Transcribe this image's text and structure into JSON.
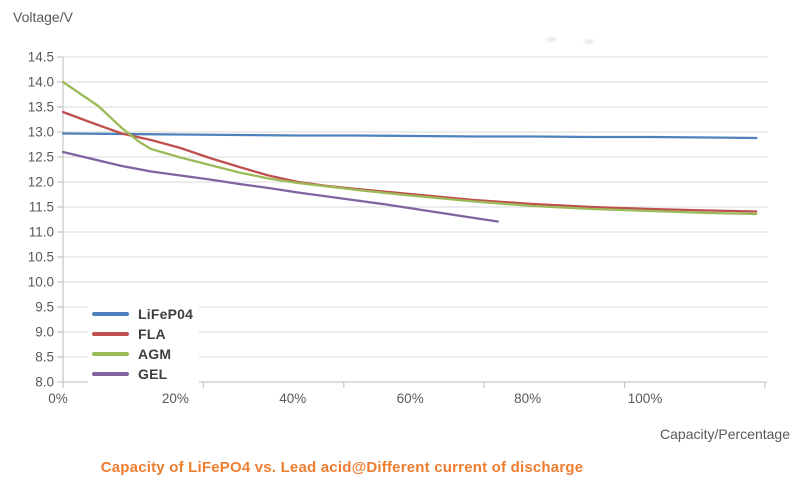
{
  "page": {
    "background": "#ffffff"
  },
  "chart_data": {
    "type": "line",
    "title": "Capacity of LiFePO4 vs. Lead acid@Different current of discharge",
    "title_color": "#ED7D31",
    "ylabel": "Voltage/V",
    "xlabel": "Capacity/Percentage",
    "ylim": [
      8.0,
      14.5
    ],
    "y_tick_step": 0.5,
    "y_tick_labels": [
      "14.5",
      "14.0",
      "13.5",
      "13.0",
      "12.5",
      "12.0",
      "11.5",
      "11.0",
      "10.5",
      "10.0",
      "9.5",
      "9.0",
      "8.5",
      "8.0"
    ],
    "x_tick_labels": [
      "0%",
      "20%",
      "40%",
      "60%",
      "80%",
      "100%"
    ],
    "x_tick_values": [
      0,
      20,
      40,
      60,
      80,
      100
    ],
    "x_max_percent": 120,
    "grid": "horizontal-only",
    "legend_position": "inside-bottom-left",
    "grid_color": "#D9D9D9",
    "axis_color": "#C6C6C6",
    "tick_text_color": "#595959",
    "legend_text_color": "#3f3f3f",
    "series": [
      {
        "name": "LiFeP04",
        "color": "#4F81BD",
        "points": [
          [
            0,
            12.97
          ],
          [
            10,
            12.96
          ],
          [
            20,
            12.95
          ],
          [
            30,
            12.94
          ],
          [
            40,
            12.93
          ],
          [
            50,
            12.93
          ],
          [
            60,
            12.92
          ],
          [
            70,
            12.91
          ],
          [
            80,
            12.91
          ],
          [
            90,
            12.9
          ],
          [
            100,
            12.9
          ],
          [
            110,
            12.89
          ],
          [
            118,
            12.88
          ]
        ]
      },
      {
        "name": "FLA",
        "color": "#C0504D",
        "points": [
          [
            0,
            13.4
          ],
          [
            5,
            13.18
          ],
          [
            10,
            12.97
          ],
          [
            15,
            12.84
          ],
          [
            20,
            12.68
          ],
          [
            25,
            12.48
          ],
          [
            30,
            12.3
          ],
          [
            35,
            12.13
          ],
          [
            40,
            12.0
          ],
          [
            45,
            11.92
          ],
          [
            50,
            11.86
          ],
          [
            60,
            11.75
          ],
          [
            70,
            11.64
          ],
          [
            80,
            11.56
          ],
          [
            90,
            11.5
          ],
          [
            100,
            11.46
          ],
          [
            110,
            11.43
          ],
          [
            118,
            11.41
          ]
        ]
      },
      {
        "name": "AGM",
        "color": "#9BBB59",
        "points": [
          [
            0,
            14.0
          ],
          [
            3,
            13.76
          ],
          [
            6,
            13.52
          ],
          [
            10,
            13.08
          ],
          [
            13,
            12.8
          ],
          [
            15,
            12.66
          ],
          [
            20,
            12.49
          ],
          [
            25,
            12.34
          ],
          [
            30,
            12.19
          ],
          [
            35,
            12.07
          ],
          [
            40,
            11.98
          ],
          [
            50,
            11.84
          ],
          [
            60,
            11.72
          ],
          [
            70,
            11.61
          ],
          [
            80,
            11.52
          ],
          [
            90,
            11.46
          ],
          [
            100,
            11.42
          ],
          [
            110,
            11.38
          ],
          [
            118,
            11.36
          ]
        ]
      },
      {
        "name": "GEL",
        "color": "#8064A2",
        "points": [
          [
            0,
            12.6
          ],
          [
            5,
            12.46
          ],
          [
            10,
            12.32
          ],
          [
            15,
            12.21
          ],
          [
            20,
            12.13
          ],
          [
            25,
            12.05
          ],
          [
            30,
            11.96
          ],
          [
            35,
            11.88
          ],
          [
            40,
            11.79
          ],
          [
            45,
            11.71
          ],
          [
            50,
            11.63
          ],
          [
            55,
            11.55
          ],
          [
            60,
            11.46
          ],
          [
            65,
            11.37
          ],
          [
            70,
            11.28
          ],
          [
            74,
            11.21
          ]
        ]
      }
    ]
  }
}
